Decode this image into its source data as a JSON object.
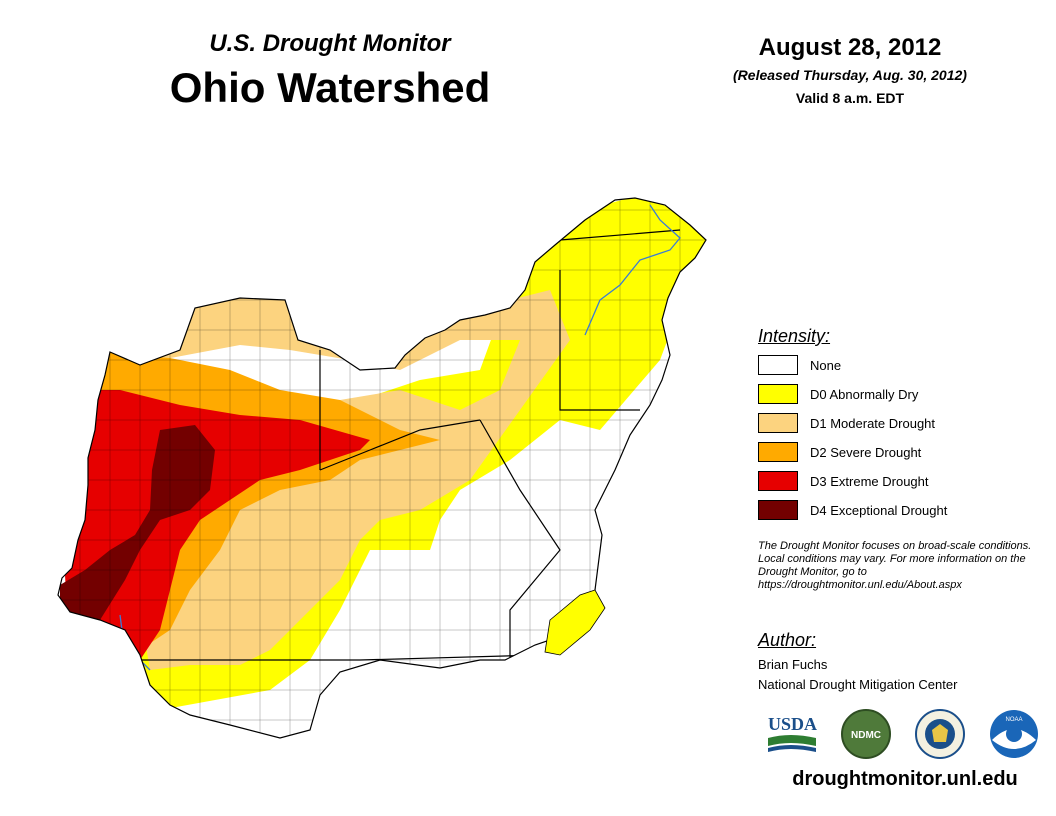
{
  "header": {
    "subtitle": "U.S. Drought Monitor",
    "title": "Ohio Watershed",
    "date": "August 28, 2012",
    "released": "(Released Thursday, Aug. 30, 2012)",
    "valid": "Valid 8 a.m. EDT"
  },
  "legend": {
    "title": "Intensity:",
    "items": [
      {
        "label": "None",
        "color": "#ffffff"
      },
      {
        "label": "D0 Abnormally Dry",
        "color": "#ffff00"
      },
      {
        "label": "D1 Moderate Drought",
        "color": "#fcd37f"
      },
      {
        "label": "D2 Severe Drought",
        "color": "#ffaa00"
      },
      {
        "label": "D3 Extreme Drought",
        "color": "#e60000"
      },
      {
        "label": "D4 Exceptional Drought",
        "color": "#730000"
      }
    ]
  },
  "note": "The Drought Monitor focuses on broad-scale conditions. Local conditions may vary. For more information on the Drought Monitor, go to https://droughtmonitor.unl.edu/About.aspx",
  "author": {
    "title": "Author:",
    "name": "Brian Fuchs",
    "org": "National Drought Mitigation Center"
  },
  "logos": [
    {
      "name": "usda-logo",
      "text": "USDA"
    },
    {
      "name": "ndmc-logo",
      "text": "NDMC"
    },
    {
      "name": "doc-logo",
      "text": ""
    },
    {
      "name": "noaa-logo",
      "text": "NOAA"
    }
  ],
  "url": "droughtmonitor.unl.edu",
  "colors": {
    "river": "#3a7bd5",
    "boundary": "#000000"
  }
}
